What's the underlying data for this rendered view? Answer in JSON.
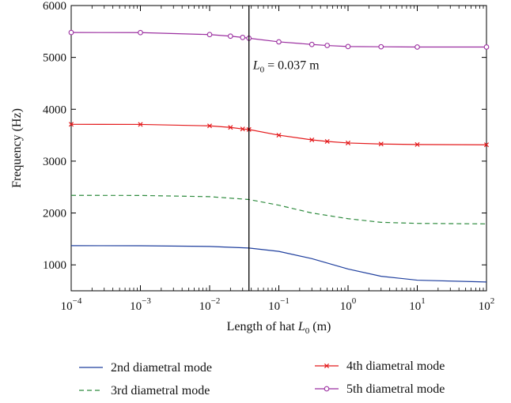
{
  "chart_data": {
    "type": "line",
    "xscale": "log",
    "xlim": [
      0.0001,
      100
    ],
    "ylim": [
      500,
      6000
    ],
    "xlabel": "Length of hat",
    "xlabel_symbol": "L",
    "xlabel_sub": "0",
    "xlabel_unit": "(m)",
    "ylabel": "Frequency (Hz)",
    "x_ticks": [
      {
        "base": "10",
        "exp": "−4"
      },
      {
        "base": "10",
        "exp": "−3"
      },
      {
        "base": "10",
        "exp": "−2"
      },
      {
        "base": "10",
        "exp": "−1"
      },
      {
        "base": "10",
        "exp": "0"
      },
      {
        "base": "10",
        "exp": "1"
      },
      {
        "base": "10",
        "exp": "2"
      }
    ],
    "y_ticks": [
      "1000",
      "2000",
      "3000",
      "4000",
      "5000",
      "6000"
    ],
    "annotation": {
      "x": 0.037,
      "symbol": "L",
      "sub": "0",
      "text": "= 0.037 m"
    },
    "series": [
      {
        "name": "2nd diametral mode",
        "color": "#1f3f9e",
        "style": "solid",
        "marker": "none",
        "x": [
          0.0001,
          0.001,
          0.01,
          0.037,
          0.1,
          0.3,
          1,
          3,
          10,
          100
        ],
        "y": [
          1370,
          1368,
          1355,
          1325,
          1260,
          1120,
          920,
          780,
          705,
          670
        ]
      },
      {
        "name": "3rd diametral mode",
        "color": "#2e8b3e",
        "style": "dashed",
        "marker": "none",
        "x": [
          0.0001,
          0.001,
          0.01,
          0.037,
          0.1,
          0.3,
          1,
          3,
          10,
          100
        ],
        "y": [
          2340,
          2338,
          2315,
          2260,
          2150,
          2000,
          1890,
          1820,
          1800,
          1790
        ]
      },
      {
        "name": "4th diametral mode",
        "color": "#e41a1c",
        "style": "solid",
        "marker": "x",
        "x": [
          0.0001,
          0.001,
          0.01,
          0.02,
          0.03,
          0.037,
          0.1,
          0.3,
          0.5,
          1,
          3,
          10,
          100
        ],
        "y": [
          3710,
          3708,
          3680,
          3650,
          3620,
          3610,
          3500,
          3410,
          3380,
          3350,
          3330,
          3320,
          3315
        ]
      },
      {
        "name": "5th diametral mode",
        "color": "#9b2fa0",
        "style": "solid",
        "marker": "o",
        "x": [
          0.0001,
          0.001,
          0.01,
          0.02,
          0.03,
          0.037,
          0.1,
          0.3,
          0.5,
          1,
          3,
          10,
          100
        ],
        "y": [
          5480,
          5478,
          5440,
          5410,
          5385,
          5370,
          5300,
          5250,
          5230,
          5210,
          5205,
          5200,
          5200
        ]
      }
    ],
    "legend": {
      "placement": "bottom"
    }
  }
}
